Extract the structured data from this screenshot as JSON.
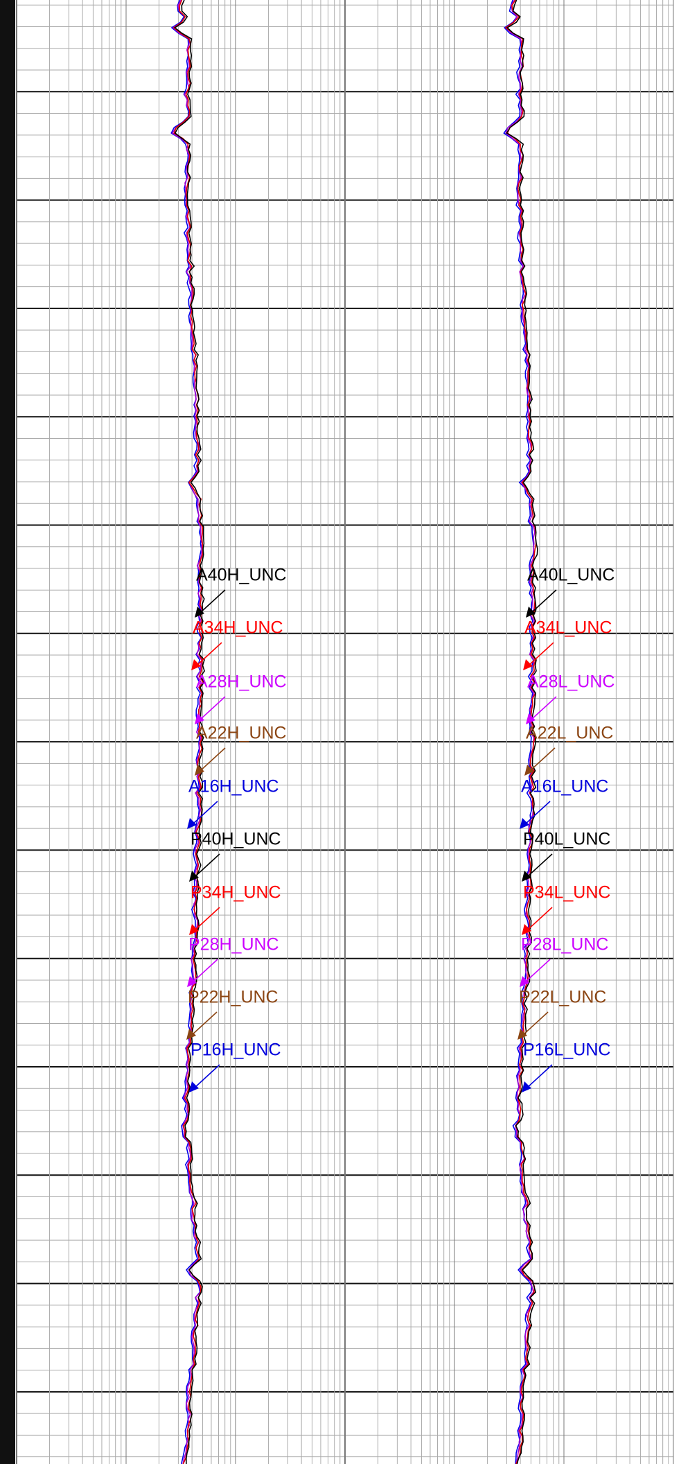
{
  "tracks": [
    {
      "labels": [
        {
          "text": "A40H_UNC",
          "color": "#000000"
        },
        {
          "text": "A34H_UNC",
          "color": "#ff0000"
        },
        {
          "text": "A28H_UNC",
          "color": "#cc00ff"
        },
        {
          "text": "A22H_UNC",
          "color": "#8b4513"
        },
        {
          "text": "A16H_UNC",
          "color": "#0000dd"
        },
        {
          "text": "P40H_UNC",
          "color": "#000000"
        },
        {
          "text": "P34H_UNC",
          "color": "#ff0000"
        },
        {
          "text": "P28H_UNC",
          "color": "#cc00ff"
        },
        {
          "text": "P22H_UNC",
          "color": "#8b4513"
        },
        {
          "text": "P16H_UNC",
          "color": "#0000dd"
        }
      ]
    },
    {
      "labels": [
        {
          "text": "A40L_UNC",
          "color": "#000000"
        },
        {
          "text": "A34L_UNC",
          "color": "#ff0000"
        },
        {
          "text": "A28L_UNC",
          "color": "#cc00ff"
        },
        {
          "text": "A22L_UNC",
          "color": "#8b4513"
        },
        {
          "text": "A16L_UNC",
          "color": "#0000dd"
        },
        {
          "text": "P40L_UNC",
          "color": "#000000"
        },
        {
          "text": "P34L_UNC",
          "color": "#ff0000"
        },
        {
          "text": "P28L_UNC",
          "color": "#cc00ff"
        },
        {
          "text": "P22L_UNC",
          "color": "#8b4513"
        },
        {
          "text": "P16L_UNC",
          "color": "#0000dd"
        }
      ]
    }
  ]
}
